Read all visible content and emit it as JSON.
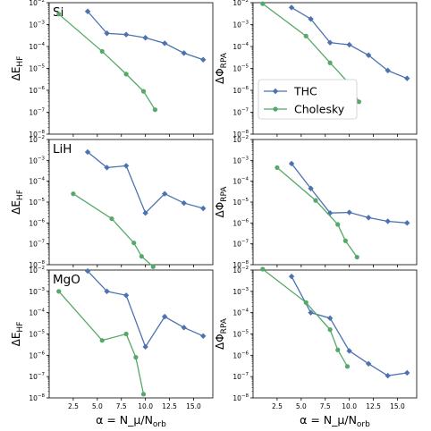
{
  "colors": {
    "thc": "#4C72B0",
    "cholesky": "#55A868",
    "axis": "#000000"
  },
  "legend": {
    "entries": [
      "THC",
      "Cholesky"
    ],
    "placement": "top-right panel, lower-left"
  },
  "chart_data": [
    {
      "type": "line",
      "panel_label": "Si",
      "ylabel": "ΔE_HF",
      "xlabel": "",
      "xlim": [
        0,
        17
      ],
      "ylim_log10": [
        -8,
        -2
      ],
      "yscale": "log",
      "grid": false,
      "series": [
        {
          "name": "THC",
          "x": [
            4,
            6,
            8,
            10,
            12,
            14,
            16
          ],
          "y": [
            0.004,
            0.0004,
            0.00035,
            0.00025,
            0.00014,
            5e-05,
            2.5e-05
          ]
        },
        {
          "name": "Cholesky",
          "x": [
            1.0,
            5.5,
            8.0,
            9.8,
            11.0
          ],
          "y": [
            0.003,
            6e-05,
            5.5e-06,
            9e-07,
            1.3e-07
          ]
        }
      ]
    },
    {
      "type": "line",
      "panel_label": "",
      "ylabel": "ΔΦ_RPA",
      "xlabel": "",
      "xlim": [
        0,
        17
      ],
      "ylim_log10": [
        -8,
        -2
      ],
      "yscale": "log",
      "grid": false,
      "series": [
        {
          "name": "THC",
          "x": [
            4,
            6,
            8,
            10,
            12,
            14,
            16
          ],
          "y": [
            0.006,
            0.0018,
            0.00015,
            0.00012,
            4e-05,
            8e-06,
            3.5e-06
          ]
        },
        {
          "name": "Cholesky",
          "x": [
            1.0,
            5.5,
            8.0,
            9.8,
            11.0
          ],
          "y": [
            0.009,
            0.0003,
            1.8e-05,
            2.5e-06,
            3e-07
          ]
        }
      ]
    },
    {
      "type": "line",
      "panel_label": "LiH",
      "ylabel": "ΔE_HF",
      "xlabel": "",
      "xlim": [
        0,
        17
      ],
      "ylim_log10": [
        -8,
        -2
      ],
      "yscale": "log",
      "grid": false,
      "series": [
        {
          "name": "THC",
          "x": [
            4,
            6,
            8,
            10,
            12,
            14,
            16
          ],
          "y": [
            0.0025,
            0.00045,
            0.00055,
            3e-06,
            2.5e-05,
            9e-06,
            5e-06
          ]
        },
        {
          "name": "Cholesky",
          "x": [
            2.5,
            6.5,
            8.8,
            9.6,
            10.8
          ],
          "y": [
            2.5e-05,
            1.6e-06,
            1.1e-07,
            2.5e-08,
            8e-09
          ]
        }
      ]
    },
    {
      "type": "line",
      "panel_label": "",
      "ylabel": "ΔΦ_RPA",
      "xlabel": "",
      "xlim": [
        0,
        17
      ],
      "ylim_log10": [
        -8,
        -2
      ],
      "yscale": "log",
      "grid": false,
      "series": [
        {
          "name": "THC",
          "x": [
            4,
            6,
            8,
            10,
            12,
            14,
            16
          ],
          "y": [
            0.0007,
            4.5e-05,
            3e-06,
            3.2e-06,
            1.8e-06,
            1.2e-06,
            1e-06
          ]
        },
        {
          "name": "Cholesky",
          "x": [
            2.5,
            6.5,
            8.8,
            9.6,
            10.8
          ],
          "y": [
            0.00045,
            1.2e-05,
            8.5e-07,
            1.4e-07,
            2.3e-08
          ]
        }
      ]
    },
    {
      "type": "line",
      "panel_label": "MgO",
      "ylabel": "ΔE_HF",
      "xlabel": "α = N_μ/N_orb",
      "xlim": [
        0,
        17
      ],
      "ylim_log10": [
        -8,
        -2
      ],
      "yscale": "log",
      "grid": false,
      "series": [
        {
          "name": "THC",
          "x": [
            4,
            6,
            8,
            10,
            12,
            14,
            16
          ],
          "y": [
            0.009,
            0.001,
            0.00065,
            2.5e-06,
            6.5e-05,
            2e-05,
            8e-06
          ]
        },
        {
          "name": "Cholesky",
          "x": [
            1.0,
            5.5,
            8.0,
            9.0,
            9.8
          ],
          "y": [
            0.001,
            5e-06,
            1e-05,
            8e-07,
            1.5e-08
          ]
        }
      ]
    },
    {
      "type": "line",
      "panel_label": "",
      "ylabel": "ΔΦ_RPA",
      "xlabel": "α = N_μ/N_orb",
      "xlim": [
        0,
        17
      ],
      "ylim_log10": [
        -8,
        -2
      ],
      "yscale": "log",
      "grid": false,
      "series": [
        {
          "name": "THC",
          "x": [
            4,
            6,
            8,
            10,
            12,
            14,
            16
          ],
          "y": [
            0.005,
            0.0001,
            5.5e-05,
            1.6e-06,
            4e-07,
            1.1e-07,
            1.5e-07
          ]
        },
        {
          "name": "Cholesky",
          "x": [
            1.0,
            5.5,
            8.0,
            8.8,
            9.8
          ],
          "y": [
            0.011,
            0.0003,
            1.6e-05,
            1.8e-06,
            3e-07
          ]
        }
      ]
    }
  ]
}
